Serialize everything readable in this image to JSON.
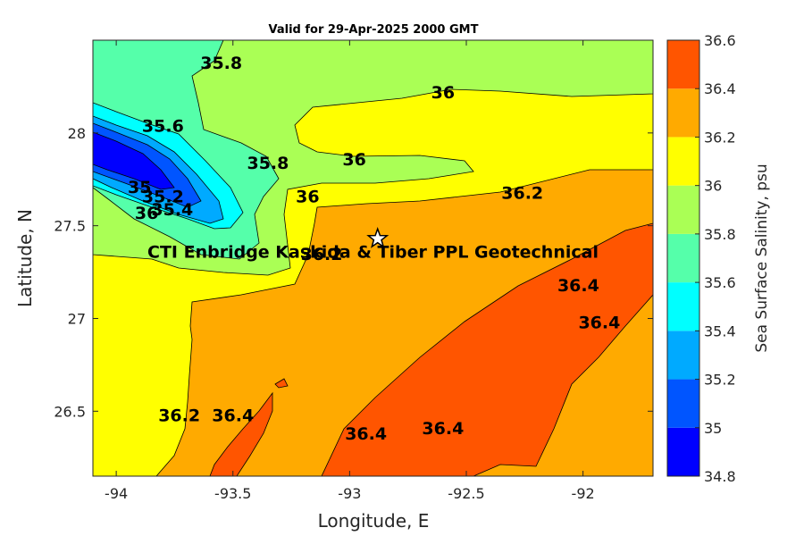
{
  "chart_data": {
    "type": "contour",
    "title": "Valid for 29-Apr-2025 2000 GMT",
    "xlabel": "Longitude, E",
    "ylabel": "Latitude, N",
    "xlim": [
      -94.1,
      -91.7
    ],
    "ylim": [
      26.15,
      28.5
    ],
    "xticks": [
      -94,
      -93.5,
      -93,
      -92.5,
      -92
    ],
    "xtick_labels": [
      "-94",
      "-93.5",
      "-93",
      "-92.5",
      "-92"
    ],
    "yticks": [
      26.5,
      27,
      27.5,
      28
    ],
    "ytick_labels": [
      "26.5",
      "27",
      "27.5",
      "28"
    ],
    "grid": false,
    "colorbar": {
      "label": "Sea Surface Salinity, psu",
      "levels": [
        34.8,
        35,
        35.2,
        35.4,
        35.6,
        35.8,
        36,
        36.2,
        36.4,
        36.6
      ],
      "tick_labels": [
        "34.8",
        "35",
        "35.2",
        "35.4",
        "35.6",
        "35.8",
        "36",
        "36.2",
        "36.4",
        "36.6"
      ],
      "colors": [
        "#0000ff",
        "#0055ff",
        "#00aaff",
        "#00ffff",
        "#55ffaa",
        "#aaff55",
        "#ffff00",
        "#ffaa00",
        "#ff5500"
      ]
    },
    "contour_labels": [
      {
        "text": "35.8",
        "lon": -93.55,
        "lat": 28.38
      },
      {
        "text": "36",
        "lon": -92.6,
        "lat": 28.22
      },
      {
        "text": "35.6",
        "lon": -93.8,
        "lat": 28.04
      },
      {
        "text": "35.8",
        "lon": -93.35,
        "lat": 27.84
      },
      {
        "text": "36",
        "lon": -92.98,
        "lat": 27.86
      },
      {
        "text": "36",
        "lon": -93.18,
        "lat": 27.66
      },
      {
        "text": "36.2",
        "lon": -92.26,
        "lat": 27.68
      },
      {
        "text": "35",
        "lon": -93.9,
        "lat": 27.71
      },
      {
        "text": "35.2",
        "lon": -93.8,
        "lat": 27.66
      },
      {
        "text": "35.4",
        "lon": -93.76,
        "lat": 27.59
      },
      {
        "text": "36",
        "lon": -93.87,
        "lat": 27.57
      },
      {
        "text": "36.2",
        "lon": -93.12,
        "lat": 27.35
      },
      {
        "text": "36.4",
        "lon": -92.02,
        "lat": 27.18
      },
      {
        "text": "36.4",
        "lon": -91.93,
        "lat": 26.98
      },
      {
        "text": "36.2",
        "lon": -93.73,
        "lat": 26.48
      },
      {
        "text": "36.4",
        "lon": -93.5,
        "lat": 26.48
      },
      {
        "text": "36.4",
        "lon": -92.93,
        "lat": 26.38
      },
      {
        "text": "36.4",
        "lon": -92.6,
        "lat": 26.41
      }
    ],
    "site_marker": {
      "lon": -92.88,
      "lat": 27.43,
      "symbol": "star"
    },
    "annotation": {
      "text": "CTI Enbridge  Kaskida & Tiber PPL Geotechnical",
      "lon": -92.9,
      "lat": 27.36
    }
  }
}
